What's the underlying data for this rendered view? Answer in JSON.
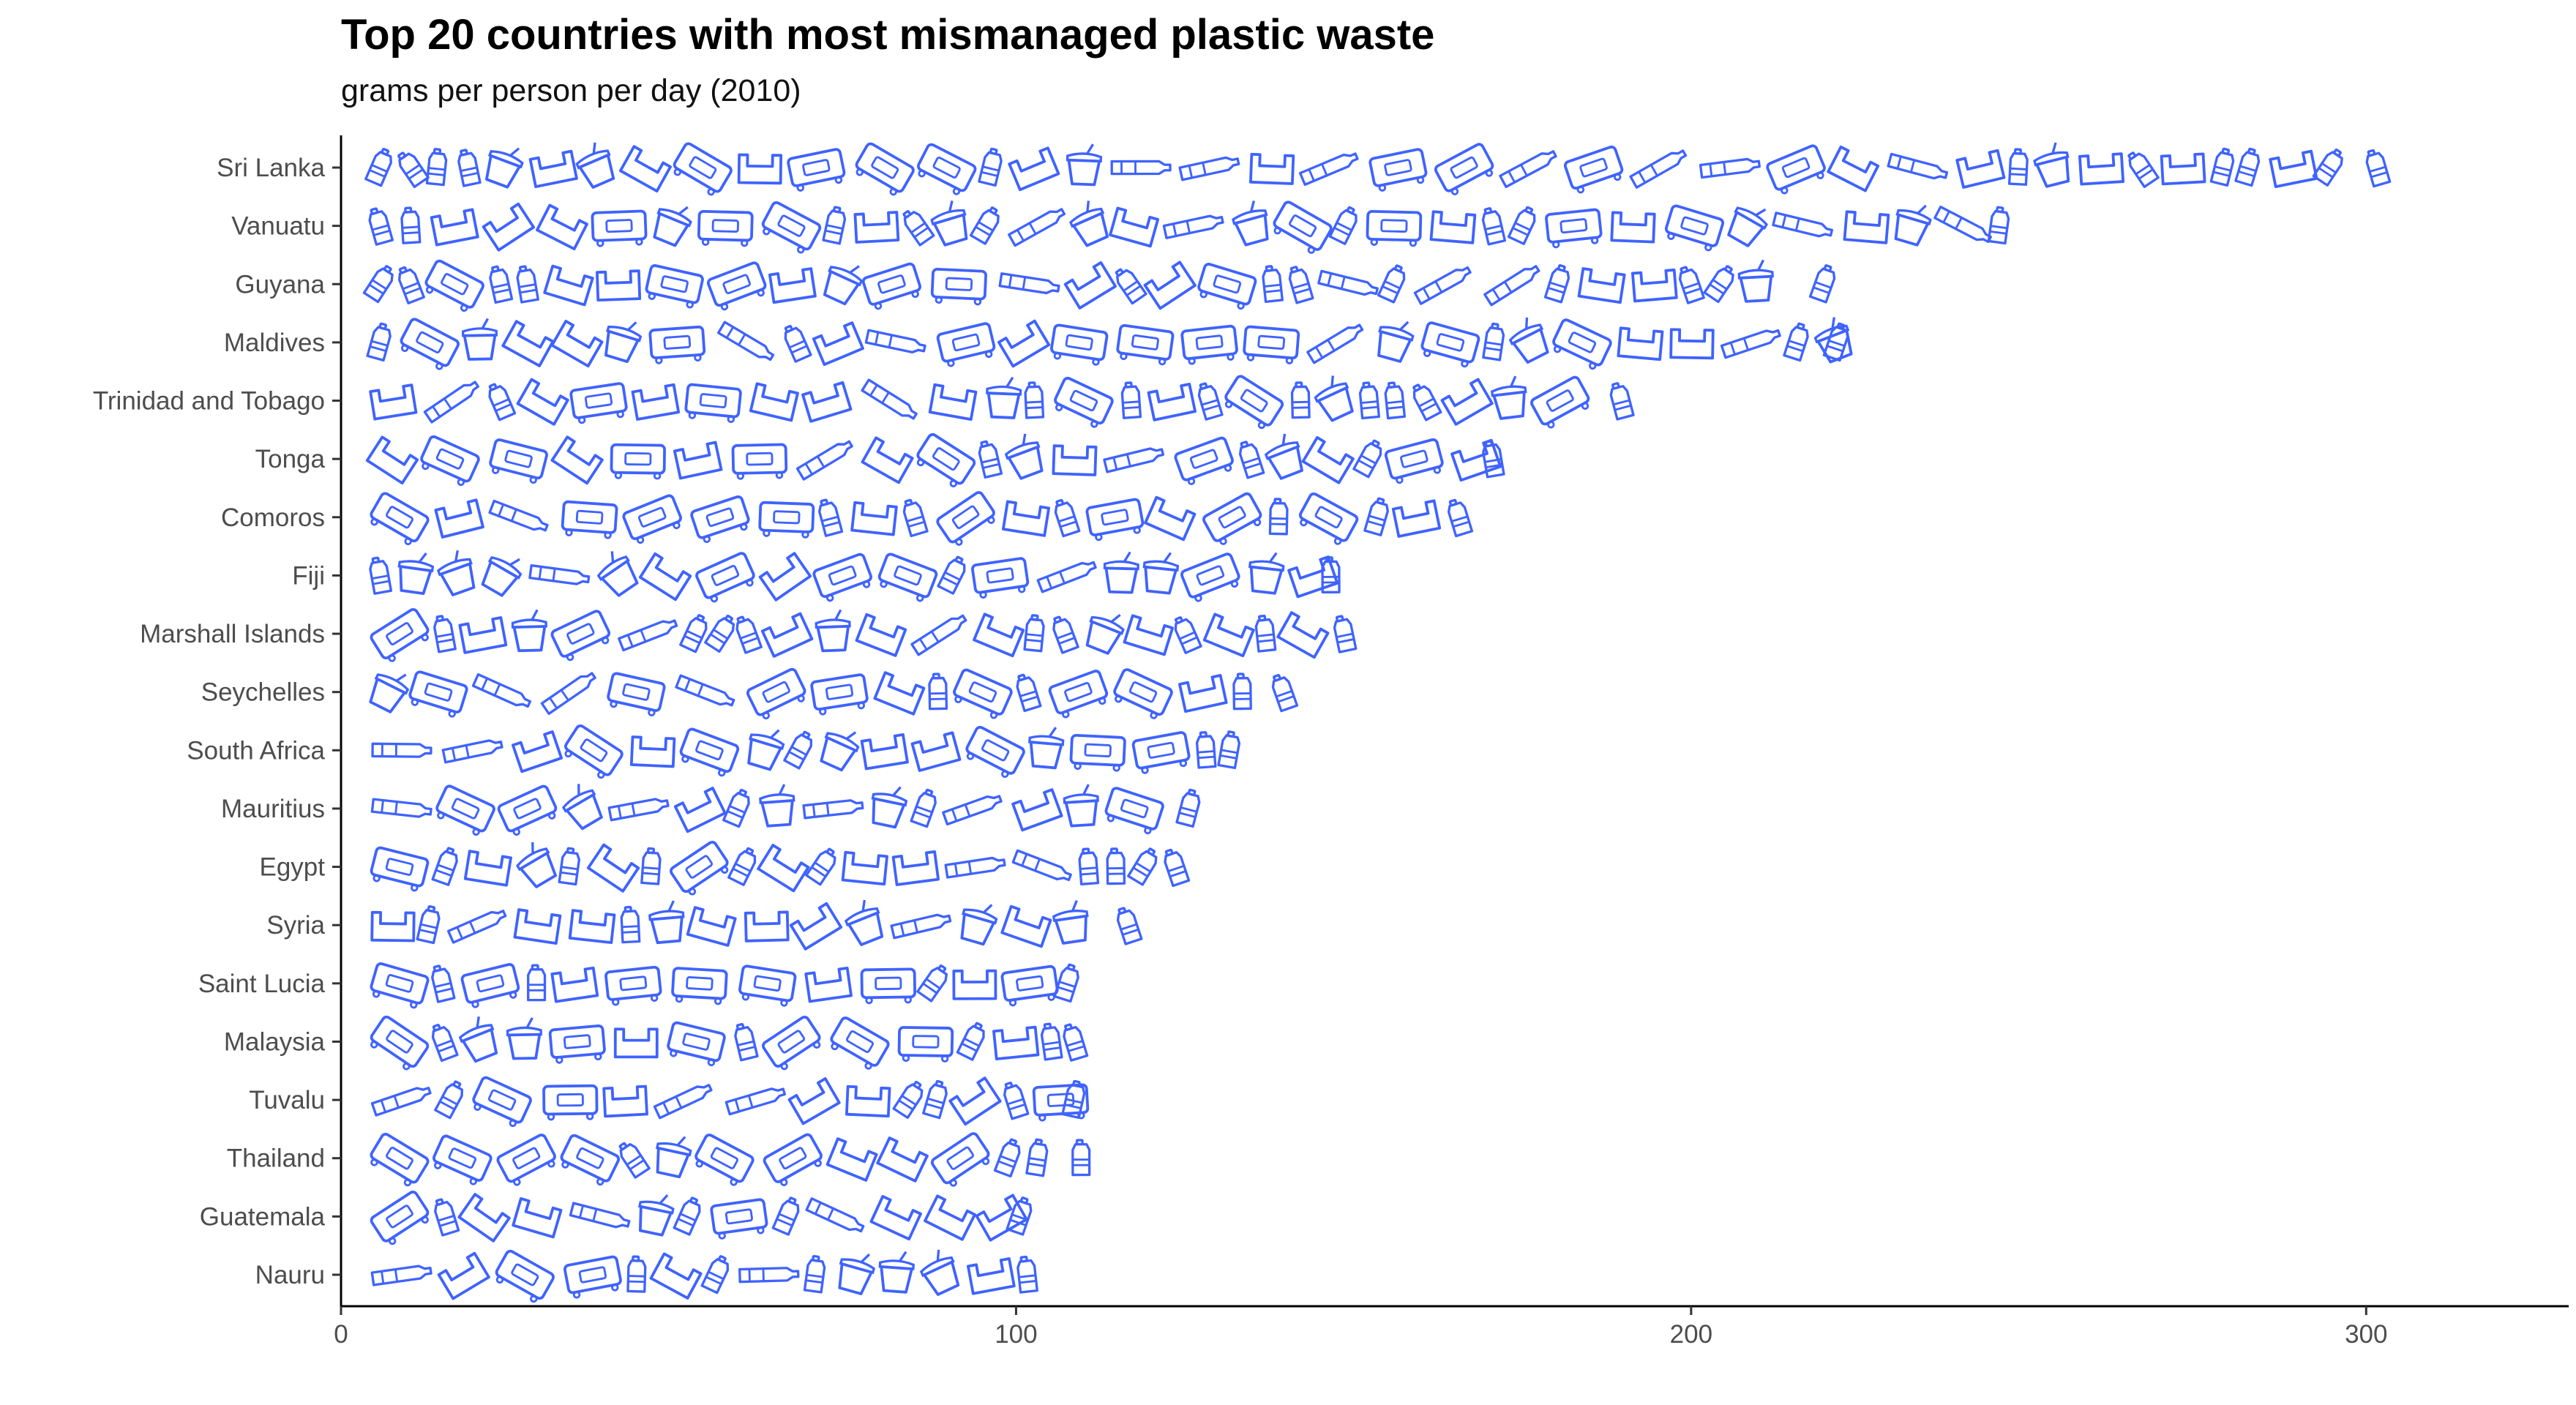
{
  "chart_data": {
    "type": "bar",
    "title": "Top 20 countries with most mismanaged plastic waste",
    "subtitle": "grams per person per day (2010)",
    "xlabel": "",
    "ylabel": "",
    "orientation": "horizontal",
    "categories": [
      "Sri Lanka",
      "Vanuatu",
      "Guyana",
      "Maldives",
      "Trinidad and Tobago",
      "Tonga",
      "Comoros",
      "Fiji",
      "Marshall Islands",
      "Seychelles",
      "South Africa",
      "Mauritius",
      "Egypt",
      "Syria",
      "Saint Lucia",
      "Malaysia",
      "Tuvalu",
      "Thailand",
      "Guatemala",
      "Nauru"
    ],
    "values": [
      304,
      248,
      222,
      224,
      192,
      173,
      168,
      149,
      151,
      142,
      134,
      128,
      126,
      119,
      110,
      111,
      111,
      112,
      103,
      104
    ],
    "xlim": [
      0,
      330
    ],
    "xticks": [
      0,
      100,
      200,
      300
    ],
    "grid": false,
    "mark_style": "plastic-waste-icons",
    "icon_color": "#3f63ff"
  }
}
